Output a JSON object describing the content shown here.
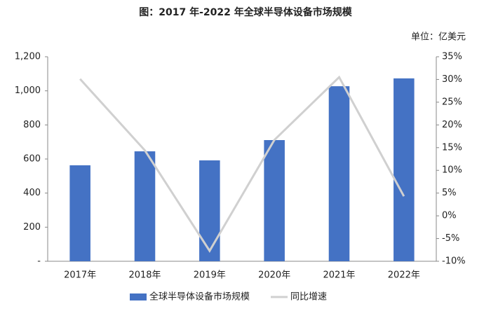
{
  "chart_data": {
    "type": "bar_line",
    "title": "图：2017 年-2022 年全球半导体设备市场规模",
    "unit_label": "单位：亿美元",
    "categories": [
      "2017年",
      "2018年",
      "2019年",
      "2020年",
      "2021年",
      "2022年"
    ],
    "series": [
      {
        "name": "全球半导体设备市场规模",
        "type": "bar",
        "color": "#4472c4",
        "values": [
          563,
          645,
          592,
          711,
          1027,
          1073
        ]
      },
      {
        "name": "同比增速",
        "type": "line",
        "color": "#d0d0d0",
        "axis": "y2",
        "values": [
          30.1,
          14.4,
          -7.7,
          16.7,
          30.5,
          4.3
        ]
      }
    ],
    "ylim": [
      0,
      1200
    ],
    "yticks": [
      {
        "value": 0,
        "label": "-"
      },
      200,
      400,
      600,
      800,
      {
        "value": 1000,
        "label": "1,000"
      },
      {
        "value": 1200,
        "label": "1,200"
      }
    ],
    "y2lim": [
      -10,
      35
    ],
    "y2ticks": [
      {
        "value": -10,
        "label": "-10%"
      },
      {
        "value": -5,
        "label": "-5%"
      },
      {
        "value": 0,
        "label": "0%"
      },
      {
        "value": 5,
        "label": "5%"
      },
      {
        "value": 10,
        "label": "10%"
      },
      {
        "value": 15,
        "label": "15%"
      },
      {
        "value": 20,
        "label": "20%"
      },
      {
        "value": 25,
        "label": "25%"
      },
      {
        "value": 30,
        "label": "30%"
      },
      {
        "value": 35,
        "label": "35%"
      }
    ],
    "grid": false,
    "legend": "bottom"
  }
}
